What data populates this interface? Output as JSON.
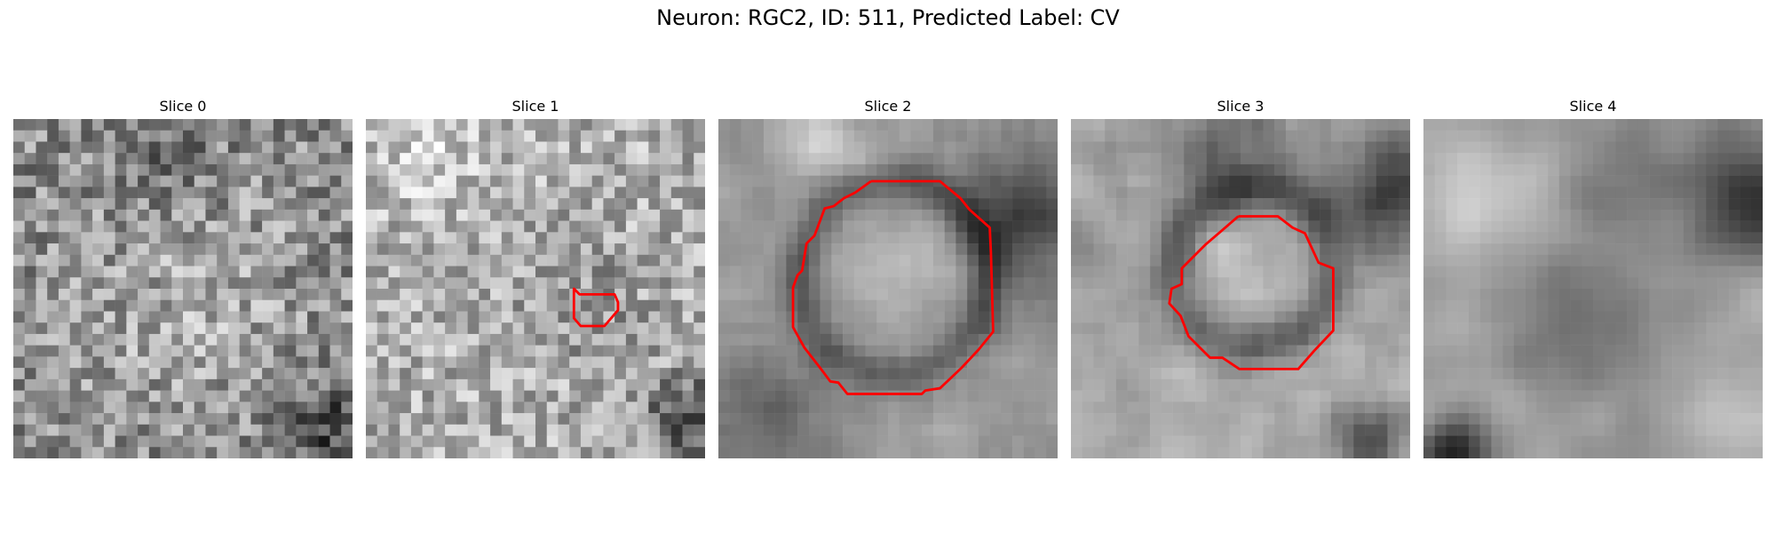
{
  "figure": {
    "title": "Neuron: RGC2, ID: 511, Predicted Label: CV"
  },
  "panels": [
    {
      "title": "Slice 0",
      "image": "noisy grayscale texture, no outline"
    },
    {
      "title": "Slice 1",
      "image": "bright noisy texture with small red outline"
    },
    {
      "title": "Slice 2",
      "image": "round cell with red contour, dark surroundings"
    },
    {
      "title": "Slice 3",
      "image": "smaller round cell with red contour"
    },
    {
      "title": "Slice 4",
      "image": "blurred grayscale texture, no outline"
    }
  ],
  "colors": {
    "contour": "#ff0000",
    "background": "#ffffff"
  }
}
